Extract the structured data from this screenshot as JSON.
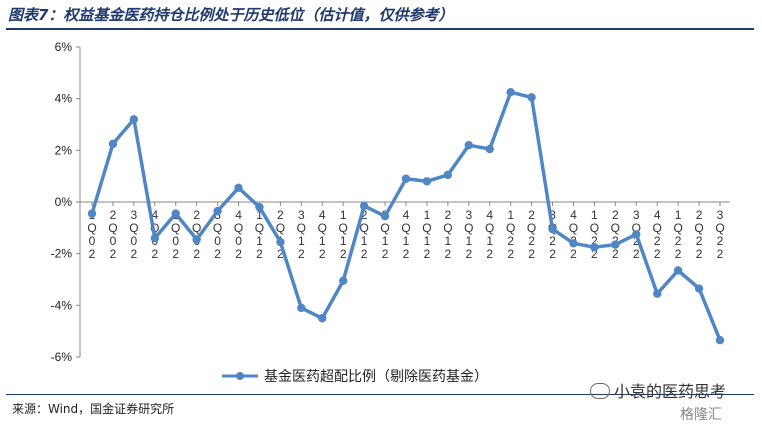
{
  "title": "图表7：权益基金医药持仓比例处于历史低位（估计值，仅供参考）",
  "source": "来源：Wind，国金证券研究所",
  "watermark": "小袁的医药思考",
  "watermark2": "格隆汇",
  "colors": {
    "line": "#4f86c6",
    "title": "#1f3a6e"
  },
  "chart_data": {
    "type": "line",
    "title": "",
    "xlabel": "",
    "ylabel": "",
    "ylim": [
      -6,
      6
    ],
    "y_ticks": [
      "6%",
      "4%",
      "2%",
      "0%",
      "-2%",
      "-4%",
      "-6%"
    ],
    "y_tick_values": [
      6,
      4,
      2,
      0,
      -2,
      -4,
      -6
    ],
    "grid": false,
    "legend": "bottom",
    "categories": [
      [
        "1",
        "Q",
        "0",
        "2"
      ],
      [
        "2",
        "Q",
        "0",
        "2"
      ],
      [
        "3",
        "Q",
        "0",
        "2"
      ],
      [
        "4",
        "Q",
        "0",
        "2"
      ],
      [
        "1",
        "Q",
        "0",
        "2"
      ],
      [
        "2",
        "Q",
        "0",
        "2"
      ],
      [
        "3",
        "Q",
        "0",
        "2"
      ],
      [
        "4",
        "Q",
        "0",
        "2"
      ],
      [
        "1",
        "Q",
        "1",
        "2"
      ],
      [
        "2",
        "Q",
        "1",
        "2"
      ],
      [
        "3",
        "Q",
        "1",
        "2"
      ],
      [
        "4",
        "Q",
        "1",
        "2"
      ],
      [
        "1",
        "Q",
        "1",
        "2"
      ],
      [
        "2",
        "Q",
        "1",
        "2"
      ],
      [
        "3",
        "Q",
        "1",
        "2"
      ],
      [
        "4",
        "Q",
        "1",
        "2"
      ],
      [
        "1",
        "Q",
        "1",
        "2"
      ],
      [
        "2",
        "Q",
        "1",
        "2"
      ],
      [
        "3",
        "Q",
        "1",
        "2"
      ],
      [
        "4",
        "Q",
        "1",
        "2"
      ],
      [
        "1",
        "Q",
        "2",
        "2"
      ],
      [
        "2",
        "Q",
        "2",
        "2"
      ],
      [
        "3",
        "Q",
        "2",
        "2"
      ],
      [
        "4",
        "Q",
        "2",
        "2"
      ],
      [
        "1",
        "Q",
        "2",
        "2"
      ],
      [
        "2",
        "Q",
        "2",
        "2"
      ],
      [
        "3",
        "Q",
        "2",
        "2"
      ],
      [
        "4",
        "Q",
        "2",
        "2"
      ],
      [
        "1",
        "Q",
        "2",
        "2"
      ],
      [
        "2",
        "Q",
        "2",
        "2"
      ],
      [
        "3",
        "Q",
        "2",
        "2"
      ]
    ],
    "series": [
      {
        "name": "基金医药超配比例（剔除医药基金）",
        "values": [
          -0.45,
          2.25,
          3.2,
          -1.4,
          -0.45,
          -1.45,
          -0.35,
          0.55,
          -0.2,
          -1.55,
          -4.1,
          -4.5,
          -3.05,
          -0.15,
          -0.55,
          0.9,
          0.8,
          1.05,
          2.2,
          2.05,
          4.25,
          4.05,
          -1.05,
          -1.6,
          -1.75,
          -1.65,
          -1.25,
          -3.55,
          -2.65,
          -3.35,
          -5.35
        ]
      }
    ]
  }
}
